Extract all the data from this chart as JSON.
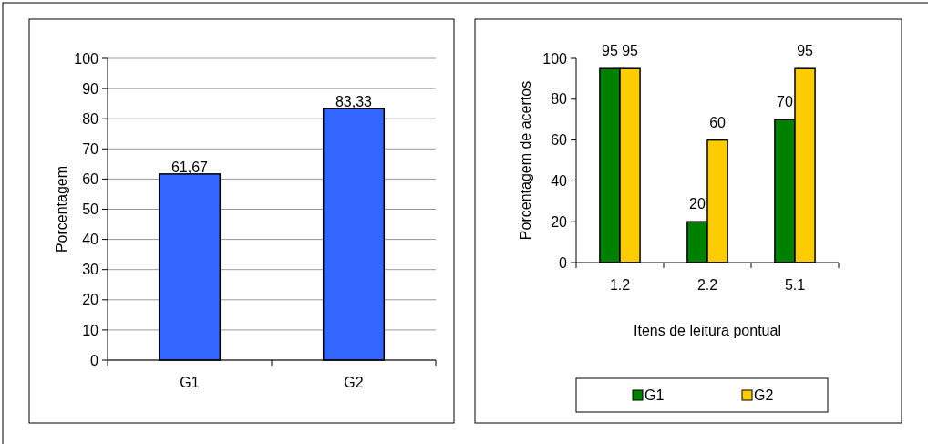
{
  "chart_data": [
    {
      "type": "bar",
      "categories": [
        "G1",
        "G2"
      ],
      "values": [
        61.67,
        83.33
      ],
      "color": "#3366ff",
      "value_labels": [
        "61,67",
        "83,33"
      ],
      "ylabel": "Porcentagem",
      "ylim": [
        0,
        100
      ],
      "yticks": [
        0,
        10,
        20,
        30,
        40,
        50,
        60,
        70,
        80,
        90,
        100
      ],
      "grid": "y",
      "legend": false
    },
    {
      "type": "bar",
      "categories": [
        "1.2",
        "2.2",
        "5.1"
      ],
      "series": [
        {
          "name": "G1",
          "color": "#008000",
          "values": [
            95,
            20,
            70
          ]
        },
        {
          "name": "G2",
          "color": "#ffcc00",
          "values": [
            95,
            60,
            95
          ]
        }
      ],
      "xlabel": "Itens de leitura pontual",
      "ylabel": "Porcentagem de acertos",
      "ylim": [
        0,
        100
      ],
      "yticks": [
        0,
        20,
        40,
        60,
        80,
        100
      ],
      "data_labels": true,
      "legend": "bottom"
    }
  ]
}
